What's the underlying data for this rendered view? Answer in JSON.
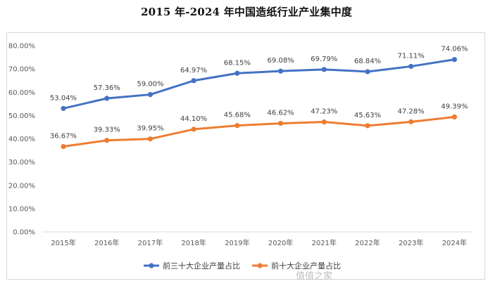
{
  "chart_data": {
    "type": "line",
    "title": "2015 年-2024 年中国造纸行业产业集中度",
    "categories": [
      "2015年",
      "2016年",
      "2017年",
      "2018年",
      "2019年",
      "2020年",
      "2021年",
      "2022年",
      "2023年",
      "2024年"
    ],
    "series": [
      {
        "name": "前三十大企业产量占比",
        "color": "#4472C4",
        "values": [
          53.04,
          57.36,
          59.0,
          64.97,
          68.15,
          69.08,
          69.79,
          68.84,
          71.11,
          74.06
        ],
        "labels": [
          "53.04%",
          "57.36%",
          "59.00%",
          "64.97%",
          "68.15%",
          "69.08%",
          "69.79%",
          "68.84%",
          "71.11%",
          "74.06%"
        ]
      },
      {
        "name": "前十大企业产量占比",
        "color": "#ED7D31",
        "values": [
          36.67,
          39.33,
          39.95,
          44.1,
          45.68,
          46.62,
          47.23,
          45.63,
          47.28,
          49.39
        ],
        "labels": [
          "36.67%",
          "39.33%",
          "39.95%",
          "44.10%",
          "45.68%",
          "46.62%",
          "47.23%",
          "45.63%",
          "47.28%",
          "49.39%"
        ]
      }
    ],
    "ylim": [
      0,
      80
    ],
    "yticks": [
      "0.00%",
      "10.00%",
      "20.00%",
      "30.00%",
      "40.00%",
      "50.00%",
      "60.00%",
      "70.00%",
      "80.00%"
    ],
    "grid": false,
    "legend": "bottom"
  },
  "watermark": "值值之家"
}
